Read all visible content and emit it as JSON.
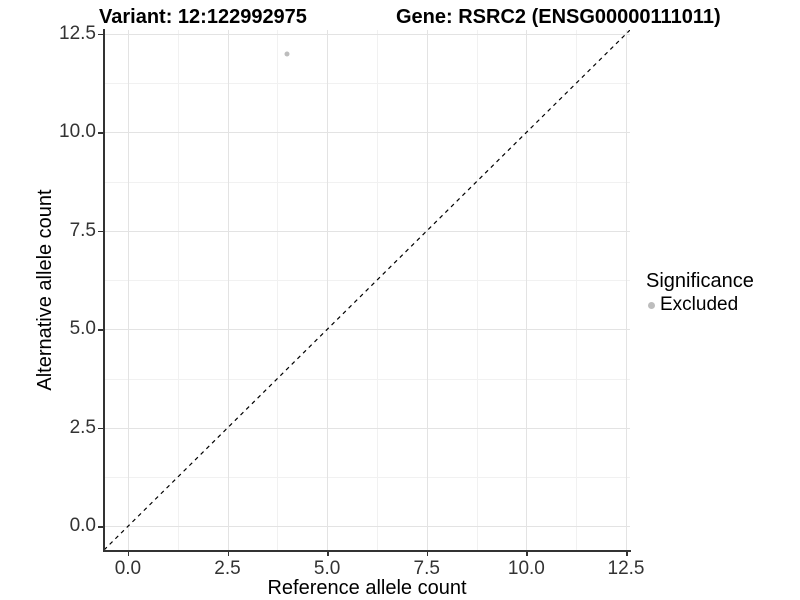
{
  "titles": {
    "variant": "Variant: 12:122992975",
    "gene": "Gene: RSRC2 (ENSG00000111011)"
  },
  "axes": {
    "x": {
      "label": "Reference allele count",
      "tick_labels": [
        "0.0",
        "2.5",
        "5.0",
        "7.5",
        "10.0",
        "12.5"
      ]
    },
    "y": {
      "label": "Alternative allele count",
      "tick_labels": [
        "0.0",
        "2.5",
        "5.0",
        "7.5",
        "10.0",
        "12.5"
      ]
    }
  },
  "legend": {
    "title": "Significance",
    "items": [
      {
        "label": "Excluded",
        "color": "#bdbdbd"
      }
    ]
  },
  "colors": {
    "point": "#bdbdbd",
    "axis_line": "#333333",
    "tick_text": "#333333",
    "grid_major": "#e3e3e3",
    "grid_minor": "#f1f1f1",
    "reference_line": "#000000"
  },
  "chart_data": {
    "type": "scatter",
    "title": "Variant: 12:122992975 — Gene: RSRC2 (ENSG00000111011)",
    "xlabel": "Reference allele count",
    "ylabel": "Alternative allele count",
    "xlim": [
      -0.6,
      12.6
    ],
    "ylim": [
      -0.6,
      12.6
    ],
    "x_major_ticks": [
      0,
      2.5,
      5,
      7.5,
      10,
      12.5
    ],
    "y_major_ticks": [
      0,
      2.5,
      5,
      7.5,
      10,
      12.5
    ],
    "x_minor_ticks": [
      1.25,
      3.75,
      6.25,
      8.75,
      11.25
    ],
    "y_minor_ticks": [
      1.25,
      3.75,
      6.25,
      8.75,
      11.25
    ],
    "grid": true,
    "legend_position": "right",
    "series": [
      {
        "name": "Excluded",
        "color": "#bdbdbd",
        "points": [
          {
            "x": 4,
            "y": 12
          }
        ]
      }
    ],
    "reference_line": {
      "type": "identity",
      "slope": 1,
      "intercept": 0,
      "style": "dashed",
      "color": "#000000"
    }
  }
}
